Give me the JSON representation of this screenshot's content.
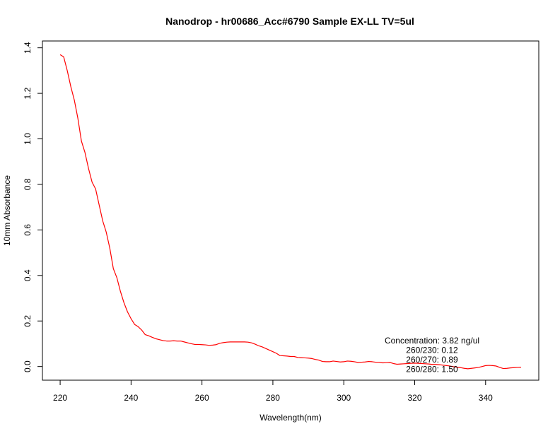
{
  "chart_data": {
    "type": "line",
    "title": "Nanodrop - hr00686_Acc#6790 Sample EX-LL TV=5ul",
    "xlabel": "Wavelength(nm)",
    "ylabel": "10mm Absorbance",
    "xlim": [
      215,
      355
    ],
    "ylim": [
      -0.06,
      1.43
    ],
    "xticks": [
      220,
      240,
      260,
      280,
      300,
      320,
      340
    ],
    "xtick_labels": [
      "220",
      "240",
      "260",
      "280",
      "300",
      "320",
      "340"
    ],
    "yticks": [
      0.0,
      0.2,
      0.4,
      0.6,
      0.8,
      1.0,
      1.2,
      1.4
    ],
    "ytick_labels": [
      "0.0",
      "0.2",
      "0.4",
      "0.6",
      "0.8",
      "1.0",
      "1.2",
      "1.4"
    ],
    "grid": false,
    "line_color": "#ff0000",
    "series": [
      {
        "x": [
          220,
          221,
          222,
          223,
          224,
          225,
          226,
          227,
          228,
          229,
          230,
          231,
          232,
          233,
          234,
          235,
          236,
          237,
          238,
          239,
          240,
          241,
          242,
          243,
          244,
          245,
          246,
          247,
          248,
          249,
          250,
          251,
          252,
          253,
          254,
          255,
          256,
          257,
          258,
          259,
          260,
          261,
          262,
          263,
          264,
          265,
          266,
          267,
          268,
          269,
          270,
          271,
          272,
          273,
          274,
          275,
          276,
          277,
          278,
          279,
          280,
          281,
          282,
          283,
          284,
          285,
          286,
          287,
          288,
          289,
          290,
          291,
          292,
          293,
          294,
          295,
          296,
          297,
          298,
          299,
          300,
          301,
          302,
          303,
          304,
          305,
          306,
          307,
          308,
          309,
          310,
          311,
          312,
          313,
          314,
          315,
          316,
          317,
          318,
          319,
          320,
          321,
          322,
          323,
          324,
          325,
          326,
          327,
          328,
          329,
          330,
          331,
          332,
          333,
          334,
          335,
          336,
          337,
          338,
          339,
          340,
          341,
          342,
          343,
          344,
          345,
          346,
          347,
          348,
          349,
          350
        ],
        "y": [
          1.37,
          1.36,
          1.3,
          1.23,
          1.17,
          1.09,
          0.99,
          0.94,
          0.87,
          0.81,
          0.78,
          0.71,
          0.64,
          0.59,
          0.52,
          0.43,
          0.39,
          0.33,
          0.28,
          0.24,
          0.21,
          0.185,
          0.175,
          0.16,
          0.14,
          0.135,
          0.128,
          0.122,
          0.118,
          0.114,
          0.112,
          0.112,
          0.113,
          0.112,
          0.112,
          0.108,
          0.104,
          0.1,
          0.097,
          0.097,
          0.096,
          0.095,
          0.093,
          0.094,
          0.096,
          0.102,
          0.105,
          0.107,
          0.108,
          0.108,
          0.108,
          0.108,
          0.108,
          0.107,
          0.104,
          0.098,
          0.091,
          0.086,
          0.079,
          0.072,
          0.065,
          0.058,
          0.048,
          0.047,
          0.046,
          0.044,
          0.044,
          0.04,
          0.039,
          0.038,
          0.037,
          0.035,
          0.031,
          0.028,
          0.022,
          0.021,
          0.021,
          0.024,
          0.022,
          0.02,
          0.021,
          0.024,
          0.023,
          0.021,
          0.018,
          0.019,
          0.02,
          0.022,
          0.021,
          0.019,
          0.019,
          0.016,
          0.017,
          0.018,
          0.013,
          0.01,
          0.011,
          0.012,
          0.013,
          0.014,
          0.015,
          0.014,
          0.013,
          0.012,
          0.011,
          0.009,
          0.009,
          0.008,
          0.006,
          0.004,
          0.002,
          -0.001,
          -0.003,
          -0.005,
          -0.008,
          -0.01,
          -0.008,
          -0.006,
          -0.004,
          0.0,
          0.004,
          0.005,
          0.004,
          0.002,
          -0.004,
          -0.009,
          -0.008,
          -0.006,
          -0.005,
          -0.004,
          -0.003
        ]
      }
    ],
    "annotations": [
      "Concentration: 3.82 ng/ul",
      "260/230: 0.12",
      "260/270: 0.89",
      "260/280: 1.50"
    ]
  }
}
